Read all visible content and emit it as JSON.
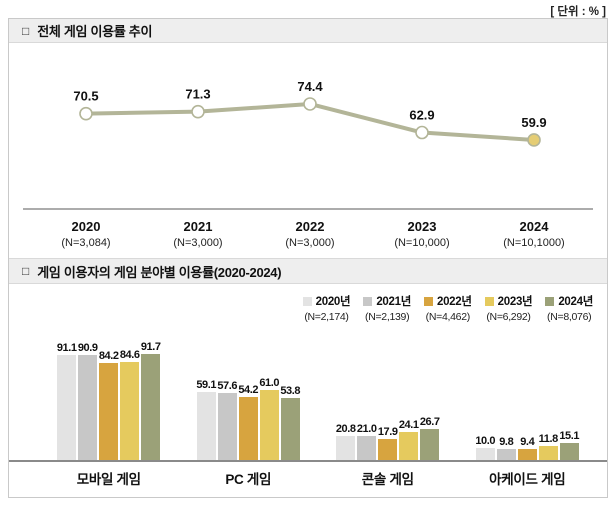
{
  "unit_label": "[ 단위 : % ]",
  "sections": {
    "trend": {
      "marker": "□",
      "title": "전체 게임 이용률 추이"
    },
    "by_field": {
      "marker": "□",
      "title": "게임 이용자의 게임 분야별 이용률(2020-2024)"
    }
  },
  "chart_data": [
    {
      "type": "line",
      "title": "전체 게임 이용률 추이",
      "x": [
        "2020",
        "2021",
        "2022",
        "2023",
        "2024"
      ],
      "x_sublabels": [
        "(N=3,084)",
        "(N=3,000)",
        "(N=3,000)",
        "(N=10,000)",
        "(N=10,1000)"
      ],
      "values": [
        70.5,
        71.3,
        74.4,
        62.9,
        59.9
      ],
      "ylim": [
        50,
        85
      ],
      "unit": "%",
      "grid": false,
      "line_color": "#b3b598",
      "marker_fill": "#ffffff",
      "last_marker_fill": "#e5cd74",
      "axis_color": "#7a7a7a"
    },
    {
      "type": "bar",
      "title": "게임 이용자의 게임 분야별 이용률(2020-2024)",
      "categories": [
        "모바일 게임",
        "PC 게임",
        "콘솔 게임",
        "아케이드 게임"
      ],
      "series": [
        {
          "name": "2020년",
          "n_label": "(N=2,174)",
          "color": "#e3e3e3",
          "values": [
            91.1,
            59.1,
            20.8,
            10.0
          ]
        },
        {
          "name": "2021년",
          "n_label": "(N=2,139)",
          "color": "#c7c7c7",
          "values": [
            90.9,
            57.6,
            21.0,
            9.8
          ]
        },
        {
          "name": "2022년",
          "n_label": "(N=4,462)",
          "color": "#d7a43f",
          "values": [
            84.2,
            54.2,
            17.9,
            9.4
          ]
        },
        {
          "name": "2023년",
          "n_label": "(N=6,292)",
          "color": "#e5ca5e",
          "values": [
            84.6,
            61.0,
            24.1,
            11.8
          ]
        },
        {
          "name": "2024년",
          "n_label": "(N=8,076)",
          "color": "#9ba178",
          "values": [
            91.7,
            53.8,
            26.7,
            15.1
          ]
        }
      ],
      "ylim": [
        0,
        100
      ],
      "unit": "%",
      "grid": false,
      "legend_position": "top-right"
    }
  ]
}
